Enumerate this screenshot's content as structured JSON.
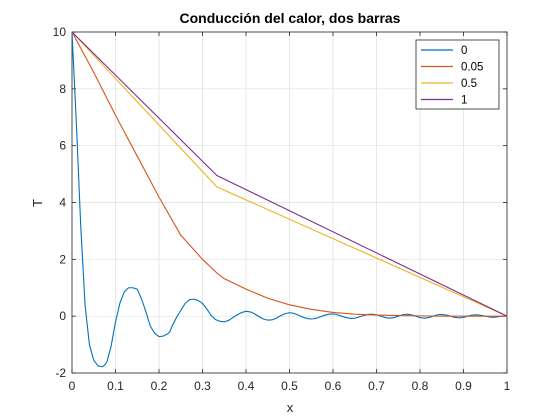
{
  "chart_data": {
    "type": "line",
    "title": "Conducción del calor, dos barras",
    "xlabel": "x",
    "ylabel": "T",
    "xlim": [
      0,
      1
    ],
    "ylim": [
      -2,
      10
    ],
    "xticks": [
      "0",
      "0.1",
      "0.2",
      "0.3",
      "0.4",
      "0.5",
      "0.6",
      "0.7",
      "0.8",
      "0.9",
      "1"
    ],
    "yticks": [
      "-2",
      "0",
      "2",
      "4",
      "6",
      "8",
      "10"
    ],
    "grid": true,
    "legend_position": "top-right",
    "series": [
      {
        "name": "0",
        "color": "#0072BD",
        "x": [
          0,
          0.01,
          0.02,
          0.03,
          0.04,
          0.05,
          0.06,
          0.07,
          0.075,
          0.08,
          0.09,
          0.1,
          0.11,
          0.12,
          0.13,
          0.14,
          0.15,
          0.16,
          0.17,
          0.18,
          0.19,
          0.2,
          0.21,
          0.22,
          0.225,
          0.23,
          0.24,
          0.25,
          0.26,
          0.27,
          0.28,
          0.29,
          0.3,
          0.31,
          0.32,
          0.33,
          0.34,
          0.35,
          0.36,
          0.37,
          0.38,
          0.39,
          0.4,
          0.41,
          0.42,
          0.43,
          0.44,
          0.45,
          0.46,
          0.47,
          0.48,
          0.49,
          0.5,
          0.51,
          0.52,
          0.53,
          0.54,
          0.55,
          0.56,
          0.57,
          0.58,
          0.59,
          0.6,
          0.61,
          0.62,
          0.63,
          0.64,
          0.65,
          0.66,
          0.67,
          0.68,
          0.69,
          0.7,
          0.71,
          0.72,
          0.73,
          0.74,
          0.75,
          0.76,
          0.77,
          0.78,
          0.79,
          0.8,
          0.81,
          0.82,
          0.83,
          0.84,
          0.85,
          0.86,
          0.87,
          0.88,
          0.89,
          0.9,
          0.91,
          0.92,
          0.93,
          0.94,
          0.95,
          0.96,
          0.97,
          0.98,
          0.99,
          1
        ],
        "y": [
          10,
          6.8,
          3.2,
          0.4,
          -1.0,
          -1.55,
          -1.75,
          -1.78,
          -1.72,
          -1.62,
          -1.05,
          -0.2,
          0.45,
          0.85,
          1.0,
          1.0,
          0.95,
          0.6,
          0.15,
          -0.35,
          -0.6,
          -0.72,
          -0.7,
          -0.62,
          -0.55,
          -0.35,
          -0.05,
          0.2,
          0.45,
          0.58,
          0.6,
          0.55,
          0.45,
          0.25,
          0.02,
          -0.12,
          -0.18,
          -0.2,
          -0.15,
          -0.05,
          0.05,
          0.13,
          0.17,
          0.15,
          0.08,
          -0.02,
          -0.1,
          -0.14,
          -0.13,
          -0.07,
          0.02,
          0.09,
          0.12,
          0.1,
          0.04,
          -0.03,
          -0.08,
          -0.1,
          -0.08,
          -0.03,
          0.03,
          0.07,
          0.08,
          0.05,
          0.0,
          -0.05,
          -0.08,
          -0.07,
          -0.03,
          0.02,
          0.06,
          0.07,
          0.05,
          0.0,
          -0.05,
          -0.07,
          -0.05,
          0.0,
          0.05,
          0.07,
          0.05,
          0.0,
          -0.05,
          -0.07,
          -0.05,
          0.0,
          0.05,
          0.06,
          0.04,
          0.0,
          -0.04,
          -0.06,
          -0.04,
          0.0,
          0.04,
          0.05,
          0.03,
          0.0,
          -0.03,
          -0.04,
          -0.02,
          0.0,
          0.0
        ]
      },
      {
        "name": "0.05",
        "color": "#D95319",
        "x": [
          0,
          0.05,
          0.1,
          0.15,
          0.2,
          0.25,
          0.3,
          0.333,
          0.35,
          0.4,
          0.45,
          0.5,
          0.55,
          0.6,
          0.65,
          0.7,
          0.75,
          0.8,
          0.85,
          0.9,
          0.95,
          1
        ],
        "y": [
          10,
          8.58,
          7.07,
          5.63,
          4.19,
          2.85,
          2.0,
          1.52,
          1.32,
          0.95,
          0.63,
          0.4,
          0.24,
          0.13,
          0.07,
          0.04,
          0.02,
          0.01,
          0.0,
          0.0,
          0.0,
          0.0
        ]
      },
      {
        "name": "0.5",
        "color": "#EDB120",
        "x": [
          0,
          0.333,
          1
        ],
        "y": [
          10,
          4.55,
          0
        ]
      },
      {
        "name": "1",
        "color": "#7E2F8E",
        "x": [
          0,
          0.333,
          1
        ],
        "y": [
          10,
          4.95,
          0
        ]
      }
    ]
  }
}
